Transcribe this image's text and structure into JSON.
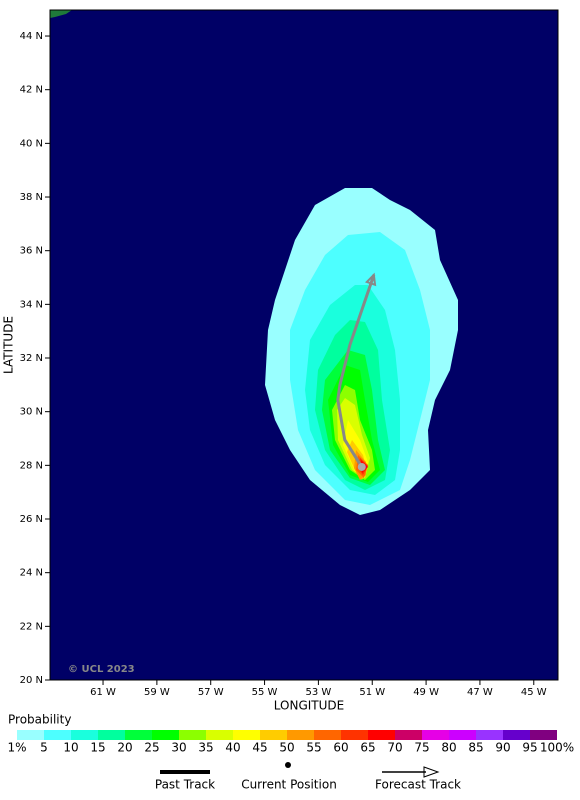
{
  "map": {
    "x_label": "LONGITUDE",
    "y_label": "LATITUDE",
    "xlim": [
      -62.97,
      -44.1
    ],
    "ylim": [
      20,
      44.97
    ],
    "xticks": [
      {
        "value": -61,
        "label": "61 W"
      },
      {
        "value": -59,
        "label": "59 W"
      },
      {
        "value": -57,
        "label": "57 W"
      },
      {
        "value": -55,
        "label": "55 W"
      },
      {
        "value": -53,
        "label": "53 W"
      },
      {
        "value": -51,
        "label": "51 W"
      },
      {
        "value": -49,
        "label": "49 W"
      },
      {
        "value": -47,
        "label": "47 W"
      },
      {
        "value": -45,
        "label": "45 W"
      }
    ],
    "yticks": [
      {
        "value": 20,
        "label": "20 N"
      },
      {
        "value": 22,
        "label": "22 N"
      },
      {
        "value": 24,
        "label": "24 N"
      },
      {
        "value": 26,
        "label": "26 N"
      },
      {
        "value": 28,
        "label": "28 N"
      },
      {
        "value": 30,
        "label": "30 N"
      },
      {
        "value": 32,
        "label": "32 N"
      },
      {
        "value": 34,
        "label": "34 N"
      },
      {
        "value": 36,
        "label": "36 N"
      },
      {
        "value": 38,
        "label": "38 N"
      },
      {
        "value": 40,
        "label": "40 N"
      },
      {
        "value": 42,
        "label": "42 N"
      },
      {
        "value": 44,
        "label": "44 N"
      }
    ],
    "copyright": "© UCL 2023",
    "forecast_track": {
      "lon": [
        -51.39,
        -52.02,
        -52.28,
        -52.2,
        -51.83,
        -50.94
      ],
      "lat": [
        27.94,
        28.95,
        30.44,
        31.0,
        32.49,
        35.1
      ]
    },
    "current_position": {
      "lon": -51.39,
      "lat": 27.94
    }
  },
  "legend": {
    "title": "Probability",
    "labels": [
      "1%",
      "5",
      "10",
      "15",
      "20",
      "25",
      "30",
      "35",
      "40",
      "45",
      "50",
      "55",
      "60",
      "65",
      "70",
      "75",
      "80",
      "85",
      "90",
      "95",
      "100%"
    ],
    "colors": [
      "#99ffff",
      "#4dffff",
      "#1affdd",
      "#00ff9e",
      "#00ff3a",
      "#00ff00",
      "#8cff00",
      "#d9ff00",
      "#ffff00",
      "#ffcc00",
      "#ff9900",
      "#ff6600",
      "#ff3300",
      "#ff0000",
      "#cc0066",
      "#e600e6",
      "#cc00ff",
      "#9933ff",
      "#6600cc",
      "#800080"
    ],
    "track_labels": [
      "Past Track",
      "Current Position",
      "Forecast Track"
    ]
  }
}
